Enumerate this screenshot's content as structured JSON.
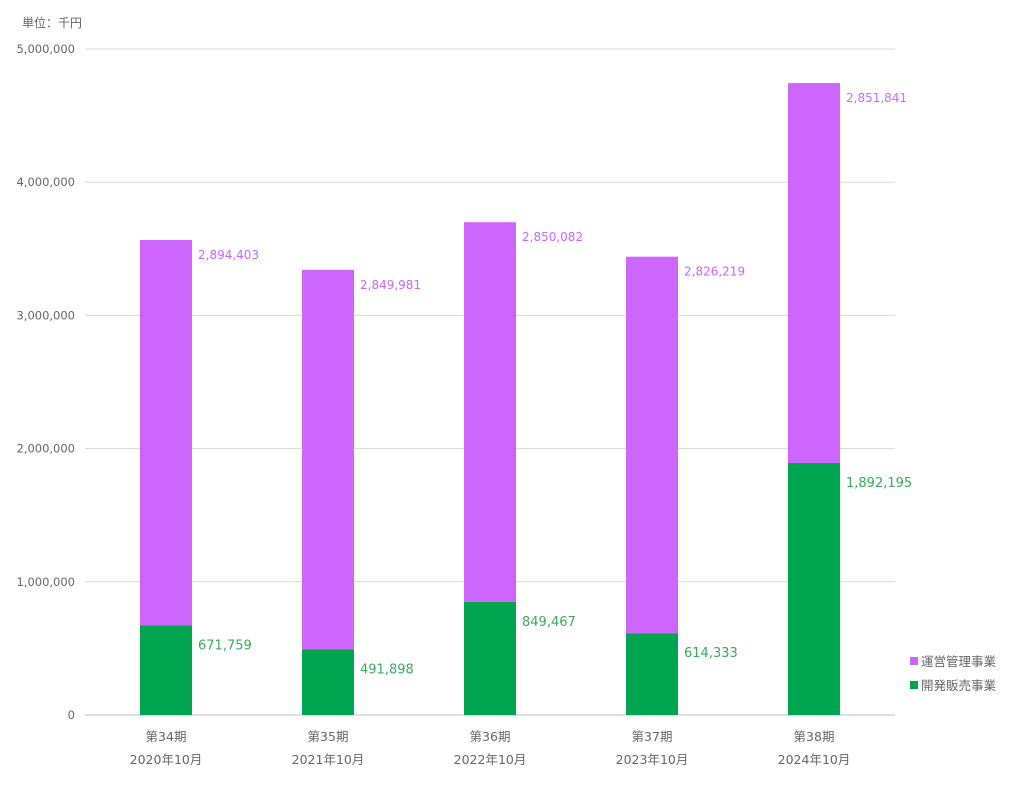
{
  "chart_data": {
    "type": "bar",
    "stacked": true,
    "unit_label": "単位：千円",
    "categories": [
      {
        "period": "第34期",
        "date": "2020年10月"
      },
      {
        "period": "第35期",
        "date": "2021年10月"
      },
      {
        "period": "第36期",
        "date": "2022年10月"
      },
      {
        "period": "第37期",
        "date": "2023年10月"
      },
      {
        "period": "第38期",
        "date": "2024年10月"
      }
    ],
    "series": [
      {
        "name": "開発販売事業",
        "color": "#00a54f",
        "values": [
          671759,
          491898,
          849467,
          614333,
          1892195
        ],
        "labels": [
          "671,759",
          "491,898",
          "849,467",
          "614,333",
          "1,892,195"
        ]
      },
      {
        "name": "運営管理事業",
        "color": "#cc66ff",
        "values": [
          2894403,
          2849981,
          2850082,
          2826219,
          2851841
        ],
        "labels": [
          "2,894,403",
          "2,849,981",
          "2,850,082",
          "2,826,219",
          "2,851,841"
        ]
      }
    ],
    "ylim": [
      0,
      5000000
    ],
    "yticks": [
      0,
      1000000,
      2000000,
      3000000,
      4000000,
      5000000
    ],
    "ytick_labels": [
      "0",
      "1,000,000",
      "2,000,000",
      "3,000,000",
      "4,000,000",
      "5,000,000"
    ],
    "legend": [
      "運営管理事業",
      "開発販売事業"
    ],
    "legend_position": "right-bottom",
    "grid": true
  }
}
